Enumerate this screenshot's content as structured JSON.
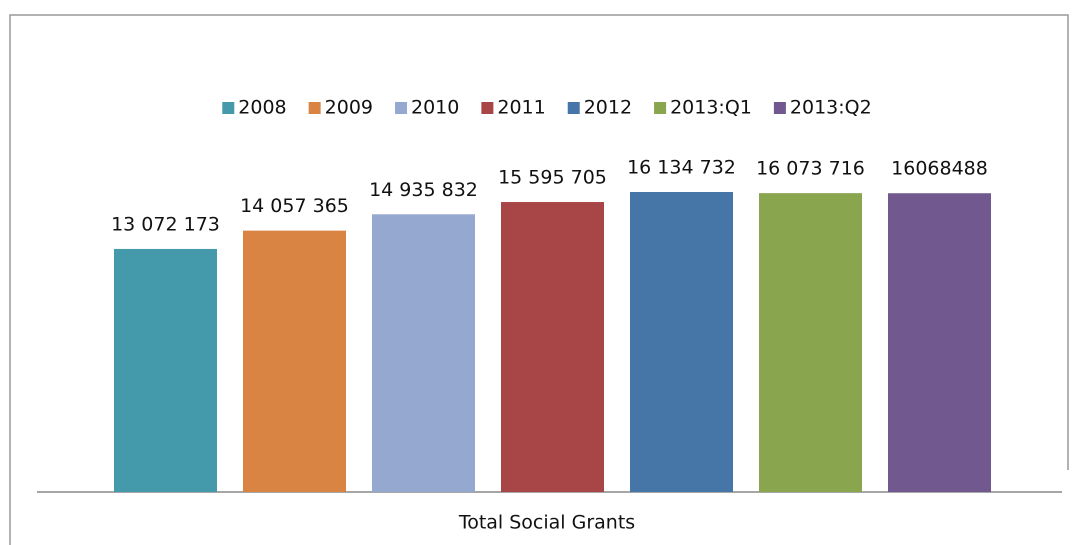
{
  "chart_data": {
    "type": "bar",
    "categories": [
      "Total Social Grants"
    ],
    "series": [
      {
        "name": "2008",
        "color": "#4499aa",
        "values": [
          13072173
        ],
        "value_labels": [
          "13 072 173"
        ]
      },
      {
        "name": "2009",
        "color": "#d98443",
        "values": [
          14057365
        ],
        "value_labels": [
          "14 057 365"
        ]
      },
      {
        "name": "2010",
        "color": "#95a9d0",
        "values": [
          14935832
        ],
        "value_labels": [
          "14 935 832"
        ]
      },
      {
        "name": "2011",
        "color": "#a84647",
        "values": [
          15595705
        ],
        "value_labels": [
          "15 595 705"
        ]
      },
      {
        "name": "2012",
        "color": "#4675a8",
        "values": [
          16134732
        ],
        "value_labels": [
          "16 134 732"
        ]
      },
      {
        "name": "2013:Q1",
        "color": "#89a54e",
        "values": [
          16073716
        ],
        "value_labels": [
          "16 073 716"
        ]
      },
      {
        "name": "2013:Q2",
        "color": "#71588f",
        "values": [
          16068488
        ]
      }
    ],
    "legend": "top"
  }
}
